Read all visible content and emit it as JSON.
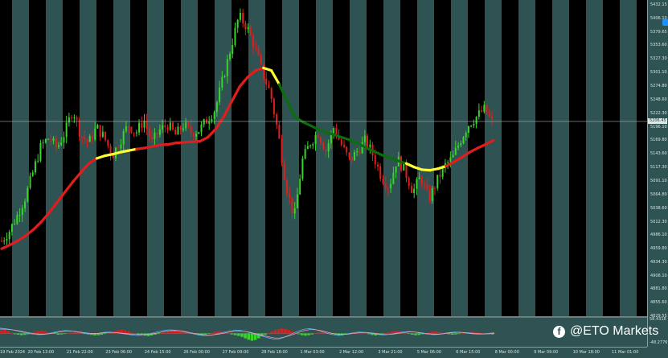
{
  "chart_data": [
    {
      "type": "candlestick",
      "title": "",
      "ylim": [
        4829.55,
        5432.15
      ],
      "price_labels": [
        "5432.15",
        "5406.10",
        "5379.65",
        "5353.60",
        "5327.30",
        "5301.10",
        "5274.80",
        "5248.60",
        "5222.30",
        "5196.10",
        "5169.80",
        "5143.60",
        "5117.30",
        "5091.10",
        "5064.80",
        "5038.60",
        "5012.30",
        "4986.10",
        "4959.80",
        "4934.30",
        "4908.10",
        "4881.80",
        "4855.60",
        "4829.55"
      ],
      "price_label_values": [
        5432.15,
        5406.1,
        5379.65,
        5353.6,
        5327.3,
        5301.1,
        5274.8,
        5248.6,
        5222.3,
        5196.1,
        5169.8,
        5143.6,
        5117.3,
        5091.1,
        5064.8,
        5038.6,
        5012.3,
        4986.1,
        4959.8,
        4934.3,
        4908.1,
        4881.8,
        4855.6,
        4829.55
      ],
      "current_price_label": "5206.45",
      "current_price": 5206.45,
      "time_labels": [
        "19 Feb 2024",
        "20 Feb 13:00",
        "21 Feb 22:00",
        "23 Feb 06:00",
        "24 Feb 15:00",
        "26 Feb 00:00",
        "27 Feb 09:00",
        "28 Feb 18:00",
        "1 Mar 03:00",
        "2 Mar 12:00",
        "3 Mar 21:00",
        "5 Mar 06:00",
        "6 Mar 15:00",
        "8 Mar 00:00",
        "9 Mar 09:00",
        "10 Mar 18:00",
        "11 Mar 01:00"
      ],
      "session_shading": true,
      "grid": false,
      "candle_colors": {
        "up": "#39d52b",
        "down": "#e11d1d"
      },
      "close_path": [
        4975,
        4995,
        5025,
        5060,
        5110,
        5160,
        5175,
        5155,
        5185,
        5230,
        5180,
        5165,
        5195,
        5175,
        5140,
        5170,
        5200,
        5185,
        5210,
        5165,
        5190,
        5200,
        5180,
        5200,
        5185,
        5190,
        5210,
        5230,
        5290,
        5350,
        5410,
        5390,
        5350,
        5300,
        5260,
        5180,
        5080,
        5020,
        5130,
        5165,
        5185,
        5150,
        5195,
        5160,
        5130,
        5150,
        5170,
        5140,
        5100,
        5080,
        5135,
        5110,
        5070,
        5100,
        5055,
        5090,
        5120,
        5135,
        5170,
        5200,
        5215,
        5230,
        5205
      ],
      "moving_average": {
        "values": [
          4960,
          4967,
          4975,
          4985,
          4997,
          5012,
          5030,
          5050,
          5070,
          5090,
          5108,
          5125,
          5135,
          5140,
          5143,
          5147,
          5150,
          5153,
          5155,
          5158,
          5161,
          5162,
          5165,
          5166,
          5167,
          5168,
          5176,
          5192,
          5216,
          5245,
          5274,
          5292,
          5305,
          5310,
          5305,
          5278,
          5245,
          5215,
          5205,
          5198,
          5190,
          5185,
          5180,
          5175,
          5170,
          5163,
          5155,
          5148,
          5141,
          5136,
          5130,
          5125,
          5118,
          5113,
          5112,
          5115,
          5120,
          5128,
          5137,
          5147,
          5155,
          5162,
          5170
        ],
        "segment_colors": [
          "#e11d1d",
          "#e11d1d",
          "#e11d1d",
          "#e11d1d",
          "#e11d1d",
          "#e11d1d",
          "#e11d1d",
          "#e11d1d",
          "#e11d1d",
          "#e11d1d",
          "#e11d1d",
          "#e11d1d",
          "#ffff33",
          "#ffff33",
          "#ffff33",
          "#ffff33",
          "#ffff33",
          "#e11d1d",
          "#e11d1d",
          "#e11d1d",
          "#e11d1d",
          "#e11d1d",
          "#e11d1d",
          "#e11d1d",
          "#e11d1d",
          "#e11d1d",
          "#e11d1d",
          "#e11d1d",
          "#e11d1d",
          "#e11d1d",
          "#e11d1d",
          "#e11d1d",
          "#e11d1d",
          "#ffff33",
          "#ffff33",
          "#0b6d0b",
          "#0b6d0b",
          "#0b6d0b",
          "#0b6d0b",
          "#0b6d0b",
          "#0b6d0b",
          "#0b6d0b",
          "#0b6d0b",
          "#0b6d0b",
          "#0b6d0b",
          "#0b6d0b",
          "#0b6d0b",
          "#0b6d0b",
          "#0b6d0b",
          "#0b6d0b",
          "#0b6d0b",
          "#ffff33",
          "#ffff33",
          "#ffff33",
          "#ffff33",
          "#ffff33",
          "#e11d1d",
          "#e11d1d",
          "#e11d1d",
          "#e11d1d",
          "#e11d1d",
          "#e11d1d"
        ]
      }
    },
    {
      "type": "histogram",
      "title": "",
      "ylim": [
        -48.2776,
        58.4318
      ],
      "top_label": "58.4318",
      "bottom_label": "-48.2776",
      "bar_colors": {
        "positive": "#e11d1d",
        "negative": "#39d52b"
      },
      "values": [
        12,
        16,
        10,
        4,
        -3,
        -5,
        -7,
        -6,
        -3,
        2,
        6,
        9,
        11,
        9,
        5,
        2,
        -2,
        -5,
        -4,
        -2,
        1,
        4,
        7,
        5,
        2,
        -1,
        -4,
        -6,
        -8,
        -7,
        -5,
        -2,
        2,
        6,
        10,
        13,
        15,
        12,
        8,
        4,
        0,
        -3,
        -6,
        -9,
        -11,
        -8,
        -5,
        -2,
        1,
        4,
        7,
        10,
        12,
        14,
        13,
        10,
        6,
        2,
        -3,
        -6,
        -9,
        -5,
        -1,
        3,
        7,
        9,
        6,
        3,
        0,
        -4,
        -7,
        -10,
        -14,
        -20,
        -26,
        -30,
        -27,
        -20,
        -12,
        -5,
        2,
        8,
        14,
        18,
        21,
        19,
        14,
        8,
        2,
        -3,
        -7,
        -9,
        -7,
        -4,
        1,
        5,
        8,
        6,
        3,
        -2,
        -6,
        -9,
        -8,
        -5,
        -1,
        3,
        5,
        6,
        4,
        1,
        -3,
        -6,
        -8,
        -5,
        -2,
        2,
        5,
        8,
        10,
        9,
        6,
        2,
        -2,
        -5,
        -7,
        -6,
        -3,
        1,
        4,
        7,
        8,
        6,
        3,
        0,
        -3,
        -5,
        -4,
        -2,
        1,
        3,
        5,
        7,
        6,
        4,
        2,
        -1,
        -3,
        -4
      ],
      "signal_lines": [
        {
          "name": "",
          "color": "#5fb3ff",
          "values": [
            22,
            20,
            17,
            13,
            8,
            3,
            -1,
            -4,
            -5,
            -3,
            1,
            6,
            10,
            12,
            11,
            8,
            4,
            0,
            -2,
            -1,
            2,
            5,
            6,
            4,
            1,
            -2,
            -5,
            -7,
            -7,
            -5,
            -1,
            4,
            9,
            13,
            15,
            14,
            11,
            6,
            1,
            -3,
            -7,
            -9,
            -8,
            -4,
            1,
            6,
            10,
            13,
            13,
            9,
            3,
            -3,
            -8,
            -14,
            -20,
            -24,
            -22,
            -15,
            -6,
            4,
            12,
            18,
            20,
            17,
            11,
            4,
            -2,
            -6,
            -7,
            -4,
            0,
            4,
            6,
            5,
            2,
            -2,
            -5,
            -6,
            -4,
            0,
            4,
            7,
            8,
            6,
            2,
            -1,
            -4,
            -5,
            -3,
            1,
            4,
            6,
            5,
            3,
            0,
            -2,
            -3,
            -2,
            1,
            3
          ]
        },
        {
          "name": "",
          "color": "#ff9eb0",
          "values": [
            18,
            18,
            16,
            14,
            10,
            6,
            2,
            -1,
            -3,
            -3,
            -1,
            3,
            6,
            9,
            10,
            9,
            6,
            3,
            1,
            0,
            1,
            3,
            4,
            4,
            2,
            0,
            -2,
            -4,
            -5,
            -5,
            -3,
            0,
            4,
            8,
            11,
            12,
            11,
            8,
            4,
            0,
            -3,
            -6,
            -7,
            -5,
            -2,
            2,
            6,
            9,
            10,
            9,
            5,
            0,
            -5,
            -10,
            -15,
            -19,
            -19,
            -15,
            -9,
            -2,
            6,
            12,
            16,
            16,
            13,
            8,
            3,
            -1,
            -4,
            -4,
            -2,
            1,
            3,
            4,
            3,
            1,
            -2,
            -4,
            -4,
            -2,
            1,
            4,
            6,
            6,
            4,
            1,
            -1,
            -3,
            -3,
            -1,
            2,
            4,
            5,
            4,
            2,
            0,
            -1,
            -2,
            -1,
            1
          ]
        }
      ]
    }
  ],
  "watermark": {
    "text": "@ETO Markets",
    "icon": "facebook-icon"
  }
}
